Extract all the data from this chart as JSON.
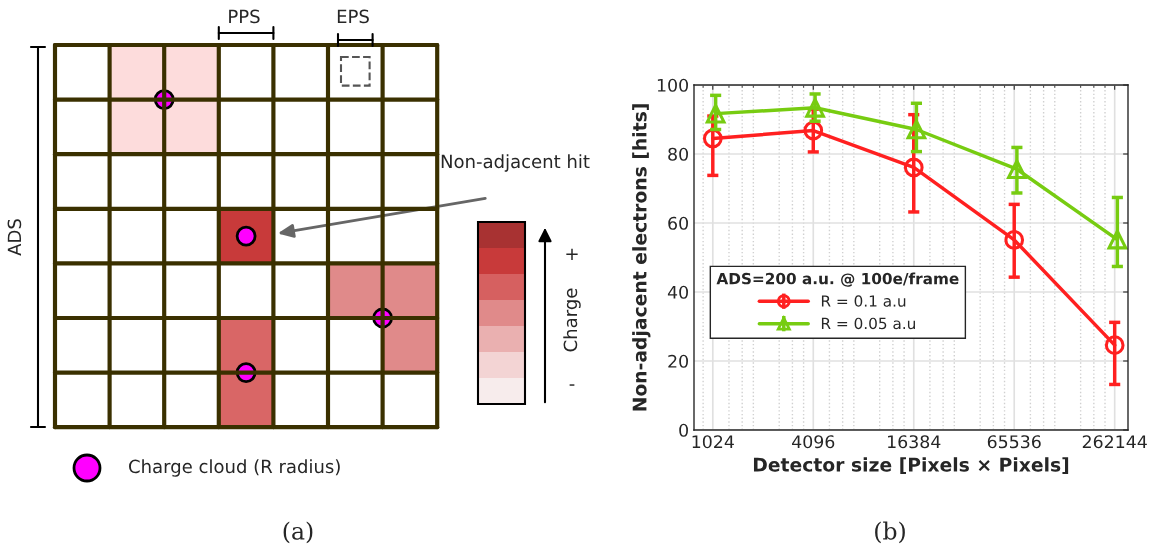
{
  "chart_data": [
    {
      "type": "other",
      "title": "(a)",
      "annotations": [
        "PPS",
        "EPS",
        "ADS",
        "Non-adjacent hit",
        "Charge",
        "+",
        "-",
        "Charge cloud (R radius)"
      ]
    },
    {
      "type": "line",
      "title": "(b)",
      "xlabel": "Detector size [Pixels × Pixels]",
      "ylabel": "Non-adjacent electrons [hits]",
      "legend_title": "ADS=200 a.u. @ 100e/frame",
      "log": "x",
      "xlim": [
        790,
        315000
      ],
      "xticks": [
        1024,
        4096,
        16384,
        65536,
        262144
      ],
      "ylim": [
        0,
        100
      ],
      "yticks": [
        0,
        20,
        40,
        60,
        80,
        100
      ],
      "grid": true,
      "legend": "left",
      "line_style": "solid",
      "series": [
        {
          "name": "R = 0.1 a.u",
          "color": "#ff2020",
          "marker": "circle",
          "x": [
            1024,
            4096,
            16384,
            65536,
            262144
          ],
          "values": [
            84.5,
            86.8,
            76.1,
            55.1,
            24.6
          ],
          "errors": [
            [
              73.8,
              91
            ],
            [
              80.6,
              93
            ],
            [
              63.2,
              91.4
            ],
            [
              44.3,
              65.4
            ],
            [
              13.2,
              31.2
            ]
          ]
        },
        {
          "name": "R = 0.05 a.u",
          "color": "#77cc11",
          "marker": "triangle",
          "x": [
            1065,
            4200,
            17000,
            68000,
            272000
          ],
          "values": [
            91.7,
            93.4,
            87.1,
            75.6,
            55.2
          ],
          "errors": [
            [
              87.1,
              97.0
            ],
            [
              89.5,
              97.4
            ],
            [
              80.7,
              94.7
            ],
            [
              68.7,
              81.9
            ],
            [
              47.4,
              67.4
            ]
          ]
        }
      ]
    }
  ]
}
